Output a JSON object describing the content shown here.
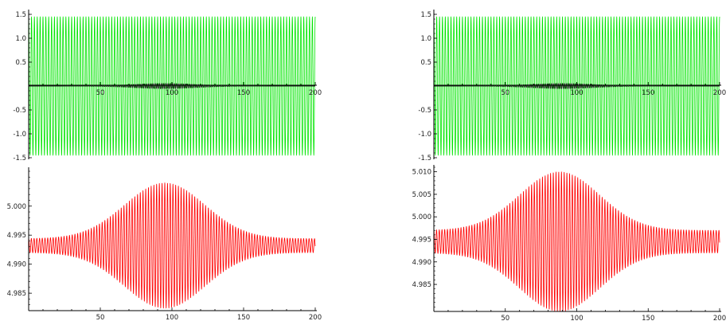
{
  "chart_data": [
    {
      "type": "line",
      "title": "",
      "xlabel": "",
      "ylabel": "",
      "xlim": [
        0,
        200
      ],
      "ylim": [
        -1.5,
        1.5
      ],
      "xticks": [
        "50",
        "100",
        "150",
        "200"
      ],
      "yticks": [
        "1.5",
        "1.0",
        "0.5",
        "-0.5",
        "-1.0",
        "-1.5"
      ],
      "grid": false,
      "series": [
        {
          "color": "#00e600",
          "x_range": [
            0,
            200
          ],
          "oscillation": "constant amplitude 1.45 about 0, about 100 cycles"
        },
        {
          "color": "#000000",
          "x_range": [
            0,
            200
          ],
          "oscillation": "small burst about 0, peak amplitude about 0.05 near x=95"
        }
      ]
    },
    {
      "type": "line",
      "title": "",
      "xlabel": "",
      "ylabel": "",
      "xlim": [
        0,
        200
      ],
      "ylim": [
        4.982,
        5.006
      ],
      "xticks": [
        "50",
        "100",
        "150",
        "200"
      ],
      "yticks": [
        "5.000",
        "4.995",
        "4.990",
        "4.985"
      ],
      "grid": false,
      "series": [
        {
          "color": "#ff0000",
          "x_range": [
            0,
            200
          ],
          "envelope": {
            "center": 4.9932,
            "baseline_half_width": 0.0012,
            "peak_half_width": 0.0108,
            "peak_x": 95
          }
        }
      ]
    },
    {
      "type": "line",
      "title": "",
      "xlabel": "",
      "ylabel": "",
      "xlim": [
        0,
        200
      ],
      "ylim": [
        -1.5,
        1.5
      ],
      "xticks": [
        "50",
        "100",
        "150",
        "200"
      ],
      "yticks": [
        "1.5",
        "1.0",
        "0.5",
        "-0.5",
        "-1.0",
        "-1.5"
      ],
      "grid": false,
      "series": [
        {
          "color": "#00e600",
          "x_range": [
            0,
            200
          ],
          "oscillation": "constant amplitude 1.45 about 0, about 100 cycles"
        },
        {
          "color": "#000000",
          "x_range": [
            0,
            200
          ],
          "oscillation": "small burst about 0, peak amplitude about 0.05 near x=90"
        }
      ]
    },
    {
      "type": "line",
      "title": "",
      "xlabel": "",
      "ylabel": "",
      "xlim": [
        0,
        200
      ],
      "ylim": [
        4.979,
        5.011
      ],
      "xticks": [
        "50",
        "100",
        "150",
        "200"
      ],
      "yticks": [
        "5.010",
        "5.005",
        "5.000",
        "4.995",
        "4.990",
        "4.985"
      ],
      "grid": false,
      "series": [
        {
          "color": "#ff0000",
          "x_range": [
            0,
            200
          ],
          "envelope": {
            "center": 4.9945,
            "baseline_half_width": 0.0025,
            "peak_half_width": 0.0155,
            "peak_x": 88
          }
        }
      ]
    }
  ]
}
